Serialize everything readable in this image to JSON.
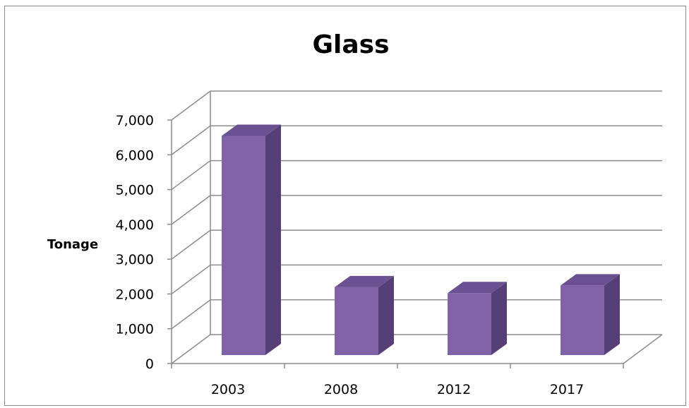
{
  "chart_data": {
    "type": "bar",
    "title": "Glass",
    "xlabel": "",
    "ylabel": "Tonage",
    "categories": [
      "2003",
      "2008",
      "2012",
      "2017"
    ],
    "values": [
      6300,
      1950,
      1780,
      2000
    ],
    "ylim": [
      0,
      7000
    ],
    "yticks": [
      "0",
      "1,000",
      "2,000",
      "3,000",
      "4,000",
      "5,000",
      "6,000",
      "7,000"
    ],
    "grid": true,
    "legend": "none",
    "style": "3d-column"
  },
  "colors": {
    "bar_front": "#8062a6",
    "bar_side": "#553f77",
    "bar_top": "#6b5191",
    "grid": "#8c8c8c",
    "border": "#8a8a8a"
  }
}
